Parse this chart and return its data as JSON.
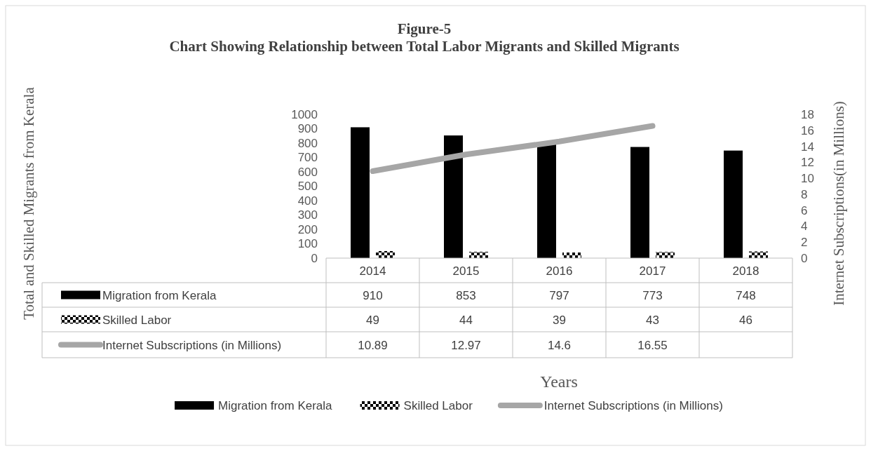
{
  "chart_data": {
    "type": "bar",
    "title": "Figure-5",
    "subtitle": "Chart Showing Relationship between Total Labor Migrants and Skilled Migrants",
    "annotations": [
      "Total and Skilled Migrants from Kerala",
      "Years"
    ],
    "y2label": "Internet Subscriptions(in Millions)",
    "categories": [
      "2014",
      "2015",
      "2016",
      "2017",
      "2018"
    ],
    "series": [
      {
        "name": "Migration from Kerala",
        "color": "#000000",
        "values": [
          910,
          853,
          797,
          773,
          748
        ]
      },
      {
        "name": "Skilled Labor",
        "color": "#000000",
        "values": [
          49,
          44,
          39,
          43,
          46
        ]
      },
      {
        "name": "Internet Subscriptions (in Millions)",
        "type": "line",
        "axis": "y2",
        "color": "#a6a6a6",
        "values": [
          10.89,
          12.97,
          14.6,
          16.55,
          null
        ]
      }
    ],
    "ylim": [
      0,
      1000
    ],
    "yticks": [
      0,
      100,
      200,
      300,
      400,
      500,
      600,
      700,
      800,
      900,
      1000
    ],
    "y2lim": [
      0,
      18
    ],
    "y2ticks": [
      0,
      2,
      4,
      6,
      8,
      10,
      12,
      14,
      16,
      18
    ],
    "data_labels": true,
    "legend": "bottom",
    "grid": false
  }
}
